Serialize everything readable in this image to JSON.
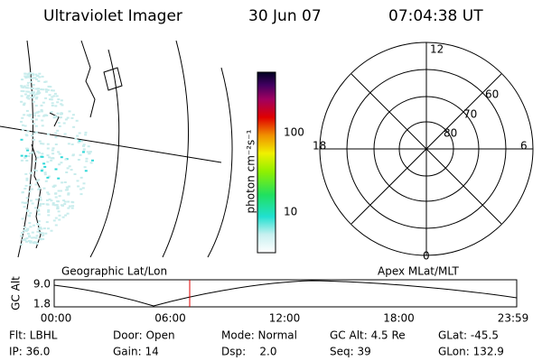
{
  "header": {
    "title": "Ultraviolet Imager",
    "date": "30 Jun 07",
    "time": "07:04:38 UT"
  },
  "colorbar": {
    "label": "photon cm⁻²s⁻¹",
    "ticks": [
      "100",
      "10"
    ]
  },
  "polar": {
    "mlt_labels": [
      "12",
      "18",
      "6",
      "0"
    ],
    "lat_labels": [
      "60",
      "70",
      "80"
    ]
  },
  "strip": {
    "left_label": "Geographic Lat/Lon",
    "right_label": "Apex MLat/MLT",
    "y_label": "GC Alt",
    "y_ticks": [
      "9.0",
      "1.8"
    ],
    "x_ticks": [
      "00:00",
      "06:00",
      "12:00",
      "18:00",
      "23:59"
    ]
  },
  "footer": {
    "rows": [
      [
        "Flt: LBHL",
        "Door: Open",
        "Mode: Normal",
        "GC Alt: 4.5 Re",
        "GLat: -45.5"
      ],
      [
        "IP: 36.0",
        "Gain: 14",
        "Dsp:    2.0",
        "Seq: 39",
        "GLon: 132.9"
      ]
    ]
  }
}
